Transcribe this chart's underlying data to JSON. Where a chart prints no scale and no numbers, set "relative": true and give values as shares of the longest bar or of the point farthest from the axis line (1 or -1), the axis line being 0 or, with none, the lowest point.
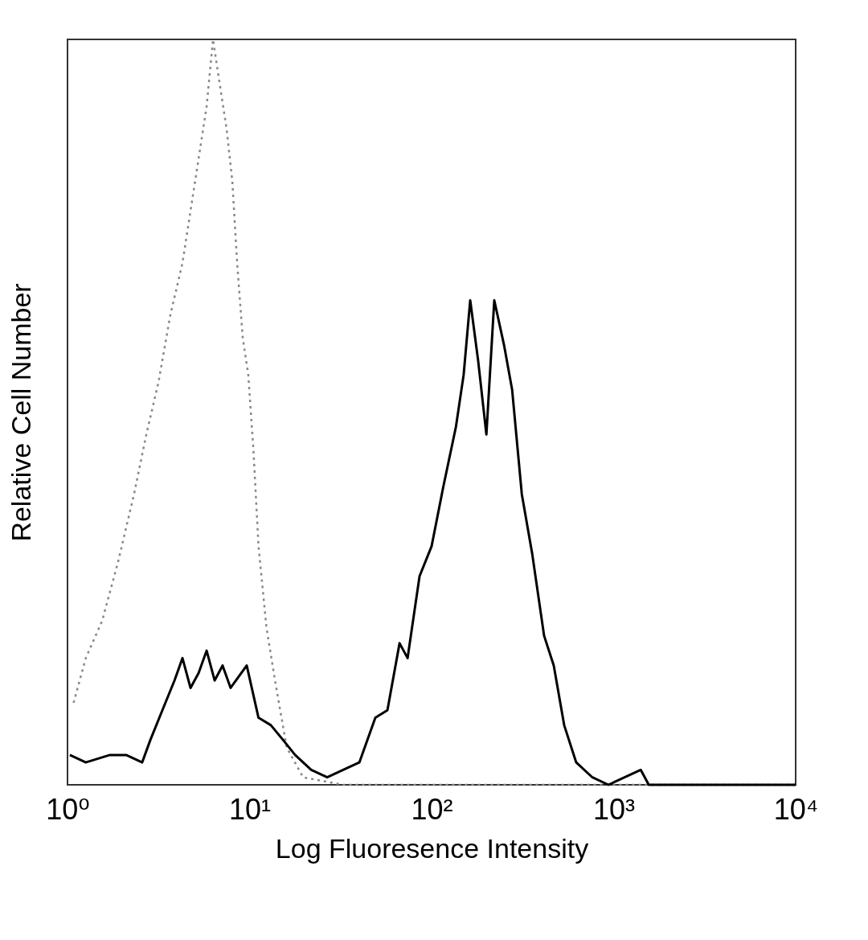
{
  "chart_data": {
    "type": "line",
    "xlabel": "Log Fluoresence Intensity",
    "ylabel": "Relative Cell Number",
    "relative": true,
    "log": "x",
    "xlim": [
      1,
      10000
    ],
    "xticks": [
      {
        "value": 1,
        "label": "10⁰"
      },
      {
        "value": 10,
        "label": "10¹"
      },
      {
        "value": 100,
        "label": "10²"
      },
      {
        "value": 1000,
        "label": "10³"
      },
      {
        "value": 10000,
        "label": "10⁴"
      }
    ],
    "marker": "none",
    "series": [
      {
        "color": "#888888",
        "line_style": "dotted",
        "x": [
          1.08,
          1.26,
          1.55,
          1.9,
          2.32,
          2.71,
          3.16,
          3.67,
          4.28,
          4.74,
          5.25,
          5.81,
          6.3,
          6.76,
          7.48,
          8.04,
          8.55,
          9.17,
          9.84,
          10.5,
          11.2,
          12.4,
          13.8,
          16,
          19.7,
          32.7,
          54.3,
          150,
          690,
          10000
        ],
        "values": [
          0.11,
          0.17,
          0.22,
          0.3,
          0.39,
          0.47,
          0.54,
          0.63,
          0.7,
          0.77,
          0.84,
          0.91,
          1,
          0.95,
          0.88,
          0.81,
          0.7,
          0.6,
          0.55,
          0.45,
          0.32,
          0.21,
          0.14,
          0.05,
          0.01,
          0,
          0,
          0,
          0,
          0
        ]
      },
      {
        "color": "#000000",
        "line_style": "solid",
        "x": [
          1.03,
          1.26,
          1.71,
          2.1,
          2.57,
          2.85,
          3.32,
          3.87,
          4.28,
          4.74,
          5.25,
          5.81,
          6.43,
          7.11,
          7.87,
          9.65,
          11.2,
          13.1,
          15.3,
          17.8,
          21.8,
          26.7,
          32.7,
          40.1,
          49.1,
          57.2,
          66.7,
          73.8,
          85.9,
          100,
          116,
          136,
          150,
          163,
          180,
          200,
          221,
          250,
          277,
          313,
          357,
          415,
          469,
          535,
          623,
          764,
          936,
          1410,
          1560,
          10000
        ],
        "values": [
          0.04,
          0.03,
          0.04,
          0.04,
          0.03,
          0.06,
          0.1,
          0.14,
          0.17,
          0.13,
          0.15,
          0.18,
          0.14,
          0.16,
          0.13,
          0.16,
          0.09,
          0.08,
          0.06,
          0.04,
          0.02,
          0.01,
          0.02,
          0.03,
          0.09,
          0.1,
          0.19,
          0.17,
          0.28,
          0.32,
          0.4,
          0.48,
          0.55,
          0.65,
          0.57,
          0.47,
          0.65,
          0.59,
          0.53,
          0.39,
          0.31,
          0.2,
          0.16,
          0.08,
          0.03,
          0.01,
          0,
          0.02,
          0,
          0
        ]
      }
    ]
  }
}
